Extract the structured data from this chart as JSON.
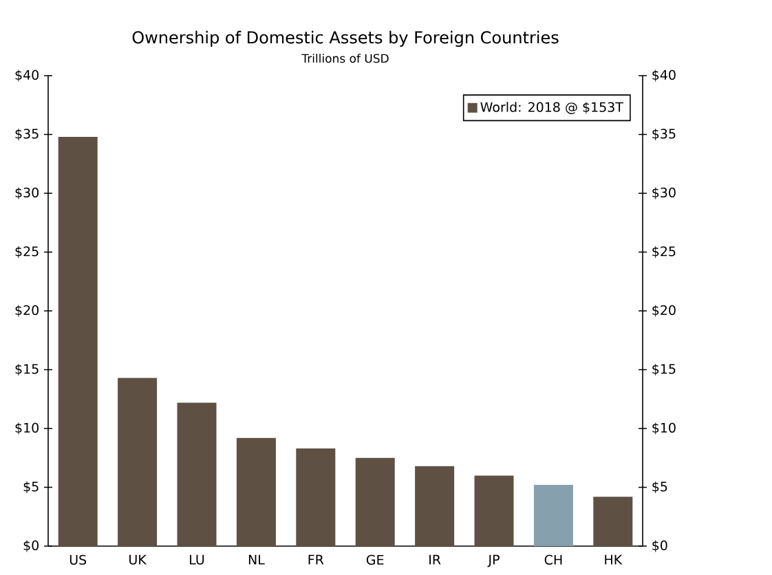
{
  "chart_data": {
    "type": "bar",
    "title": "Ownership of Domestic Assets by Foreign Countries",
    "subtitle": "Trillions of USD",
    "categories": [
      "US",
      "UK",
      "LU",
      "NL",
      "FR",
      "GE",
      "IR",
      "JP",
      "CH",
      "HK"
    ],
    "series": [
      {
        "name": "World: 2018 @ $153T",
        "color": "#5e5144",
        "colors": [
          "#5e5144",
          "#5e5144",
          "#5e5144",
          "#5e5144",
          "#5e5144",
          "#5e5144",
          "#5e5144",
          "#5e5144",
          "#87a0ae",
          "#5e5144"
        ],
        "values": [
          34.8,
          14.3,
          12.2,
          9.2,
          8.3,
          7.5,
          6.8,
          6.0,
          5.2,
          4.2
        ]
      }
    ],
    "ylim": [
      0,
      40
    ],
    "yticks": [
      {
        "value": 0,
        "label": "$0"
      },
      {
        "value": 5,
        "label": "$5"
      },
      {
        "value": 10,
        "label": "$10"
      },
      {
        "value": 15,
        "label": "$15"
      },
      {
        "value": 20,
        "label": "$20"
      },
      {
        "value": 25,
        "label": "$25"
      },
      {
        "value": 30,
        "label": "$30"
      },
      {
        "value": 35,
        "label": "$35"
      },
      {
        "value": 40,
        "label": "$40"
      }
    ],
    "y2lim": [
      0,
      40
    ],
    "y2ticks": [
      {
        "value": 0,
        "label": "$0"
      },
      {
        "value": 5,
        "label": "$5"
      },
      {
        "value": 10,
        "label": "$10"
      },
      {
        "value": 15,
        "label": "$15"
      },
      {
        "value": 20,
        "label": "$20"
      },
      {
        "value": 25,
        "label": "$25"
      },
      {
        "value": 30,
        "label": "$30"
      },
      {
        "value": 35,
        "label": "$35"
      },
      {
        "value": 40,
        "label": "$40"
      }
    ],
    "grid": false,
    "legend": "top right"
  }
}
